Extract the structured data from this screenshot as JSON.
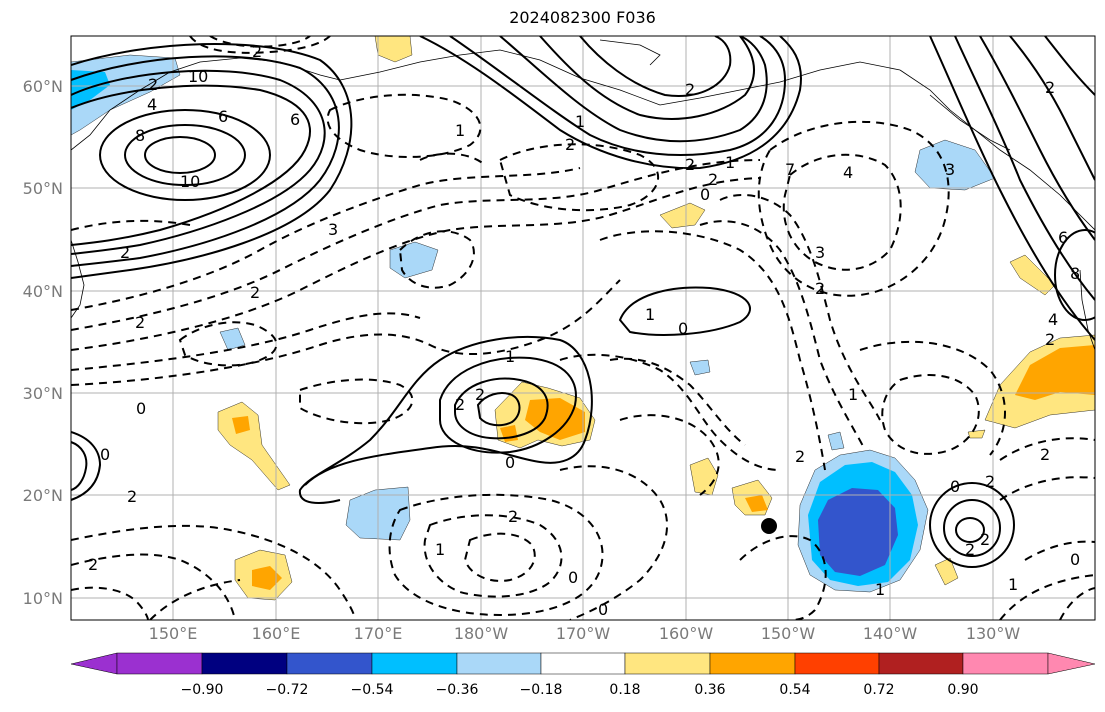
{
  "title": "2024082300 F036",
  "lat_labels": [
    "60°N",
    "50°N",
    "40°N",
    "30°N",
    "20°N",
    "10°N"
  ],
  "lon_labels": [
    "150°E",
    "160°E",
    "170°E",
    "180°W",
    "170°W",
    "160°W",
    "150°W",
    "140°W",
    "130°W"
  ],
  "colorbar": {
    "ticks": [
      "−0.90",
      "−0.72",
      "−0.54",
      "−0.36",
      "−0.18",
      "0.18",
      "0.36",
      "0.54",
      "0.72",
      "0.90"
    ],
    "colors": [
      "#9b30d0",
      "#000080",
      "#3355cc",
      "#00bfff",
      "#aad8f8",
      "#ffffff",
      "#ffe680",
      "#ffa500",
      "#ff4000",
      "#b02020",
      "#ff88b0"
    ]
  },
  "contour_labels": [
    "2",
    "10",
    "2",
    "4",
    "6",
    "8",
    "6",
    "10",
    "2",
    "3",
    "2",
    "1",
    "2",
    "0",
    "2",
    "0",
    "2",
    "7",
    "4",
    "3",
    "2",
    "2",
    "1",
    "0",
    "2",
    "1",
    "2",
    "0",
    "2",
    "1",
    "0",
    "2",
    "0",
    "1",
    "2",
    "2",
    "1",
    "2",
    "1",
    "0",
    "1",
    "0",
    "2",
    "2",
    "1",
    "2",
    "6",
    "8",
    "4",
    "2",
    "3",
    "2",
    "0",
    "2"
  ],
  "marker": "black-dot"
}
